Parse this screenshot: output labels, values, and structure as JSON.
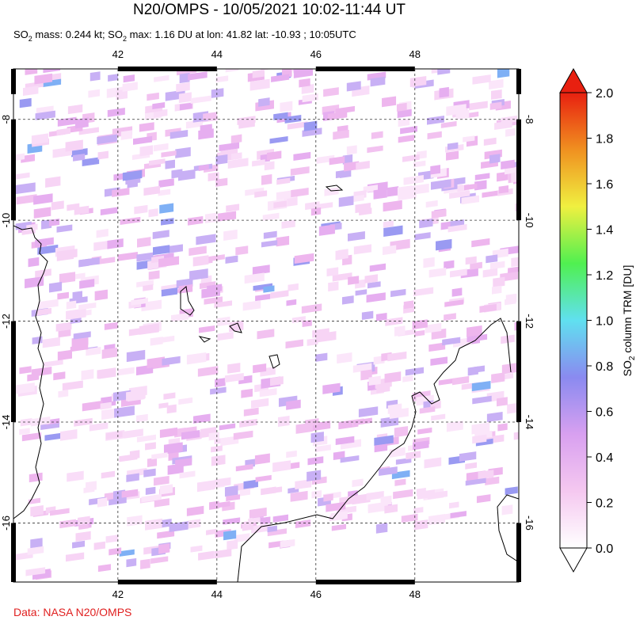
{
  "title": "N20/OMPS - 10/05/2021 10:02-11:44 UT",
  "subtitle": [
    "SO",
    "2",
    " mass: 0.244 kt; SO",
    "2",
    " max: 1.16 DU at lon: 41.82 lat: -10.93 ; 10:05UTC"
  ],
  "map": {
    "type": "map",
    "lonlim": [
      39.89,
      50.1
    ],
    "latlim": [
      -17.17,
      -7.0
    ],
    "lonticks": [
      42,
      44,
      46,
      48
    ],
    "latticks": [
      -8,
      -10,
      -12,
      -14,
      -16
    ],
    "grid": true
  },
  "colorbar": {
    "label": [
      "SO",
      "2",
      " column TRM [DU]"
    ],
    "lim": [
      0,
      2
    ],
    "ticks": [
      {
        "value": 0,
        "label": "0.0"
      },
      0.2,
      0.4,
      0.6,
      0.8,
      {
        "value": 1,
        "label": "1.0"
      },
      1.2,
      1.4,
      1.6,
      1.8,
      {
        "value": 2,
        "label": "2.0"
      }
    ],
    "colors": [
      "#ffffff",
      "#f5c8f0",
      "#d8a0f0",
      "#8a8af0",
      "#60e0f0",
      "#50f050",
      "#f0f040",
      "#f09020",
      "#e82010"
    ]
  },
  "source": "Data: NASA N20/OMPS"
}
